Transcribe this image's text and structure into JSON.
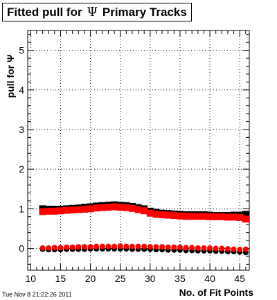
{
  "title": {
    "prefix": "Fitted pull for",
    "symbol": "Ψ",
    "suffix": "Primary Tracks"
  },
  "timestamp": "Tue Nov  8 21:22:26 2011",
  "colors": {
    "series_black": "#000000",
    "series_red": "#ff0000",
    "grid": "#000000",
    "frame": "#000000"
  },
  "chart_data": {
    "type": "scatter",
    "title": "Fitted pull for Ψ Primary Tracks",
    "xlabel": "No. of Fit Points",
    "ylabel": "pull for Ψ",
    "xlim": [
      9.5,
      46.6
    ],
    "ylim": [
      -0.55,
      5.5
    ],
    "grid": true,
    "x_ticks": [
      10,
      15,
      20,
      25,
      30,
      35,
      40,
      45
    ],
    "y_ticks": [
      0,
      1,
      2,
      3,
      4,
      5
    ],
    "x": [
      12,
      13,
      14,
      15,
      16,
      17,
      18,
      19,
      20,
      21,
      22,
      23,
      24,
      25,
      26,
      27,
      28,
      29,
      30,
      31,
      32,
      33,
      34,
      35,
      36,
      37,
      38,
      39,
      40,
      41,
      42,
      43,
      44,
      45,
      46
    ],
    "series": [
      {
        "color": "#000000",
        "marker": "square",
        "values": [
          1.0,
          0.99,
          0.99,
          0.99,
          1.0,
          1.01,
          1.02,
          1.04,
          1.05,
          1.07,
          1.08,
          1.09,
          1.1,
          1.09,
          1.08,
          1.06,
          1.03,
          1.0,
          0.94,
          0.91,
          0.89,
          0.88,
          0.87,
          0.86,
          0.85,
          0.85,
          0.85,
          0.85,
          0.84,
          0.83,
          0.83,
          0.83,
          0.84,
          0.84,
          0.86
        ]
      },
      {
        "color": "#ff0000",
        "marker": "square",
        "values": [
          0.93,
          0.94,
          0.94,
          0.95,
          0.96,
          0.97,
          0.98,
          0.99,
          1.0,
          1.02,
          1.03,
          1.04,
          1.05,
          1.04,
          1.03,
          1.01,
          0.98,
          0.95,
          0.89,
          0.86,
          0.85,
          0.84,
          0.83,
          0.82,
          0.81,
          0.81,
          0.81,
          0.81,
          0.8,
          0.8,
          0.8,
          0.79,
          0.79,
          0.78,
          0.74
        ]
      },
      {
        "color": "#000000",
        "marker": "circle",
        "values": [
          -0.02,
          -0.03,
          -0.03,
          -0.03,
          -0.02,
          -0.02,
          -0.02,
          -0.02,
          -0.01,
          -0.01,
          -0.01,
          -0.01,
          -0.01,
          -0.01,
          -0.01,
          -0.02,
          -0.02,
          -0.02,
          -0.02,
          -0.03,
          -0.03,
          -0.04,
          -0.04,
          -0.04,
          -0.05,
          -0.05,
          -0.06,
          -0.06,
          -0.06,
          -0.07,
          -0.07,
          -0.08,
          -0.08,
          -0.09,
          -0.1
        ]
      },
      {
        "color": "#ff0000",
        "marker": "circle",
        "values": [
          0.01,
          0.01,
          0.02,
          0.02,
          0.03,
          0.03,
          0.04,
          0.04,
          0.04,
          0.05,
          0.05,
          0.05,
          0.05,
          0.06,
          0.05,
          0.05,
          0.05,
          0.05,
          0.04,
          0.04,
          0.04,
          0.03,
          0.03,
          0.03,
          0.02,
          0.02,
          0.01,
          0.01,
          0.01,
          0.0,
          0.0,
          -0.01,
          -0.02,
          -0.03,
          -0.02
        ]
      }
    ]
  }
}
